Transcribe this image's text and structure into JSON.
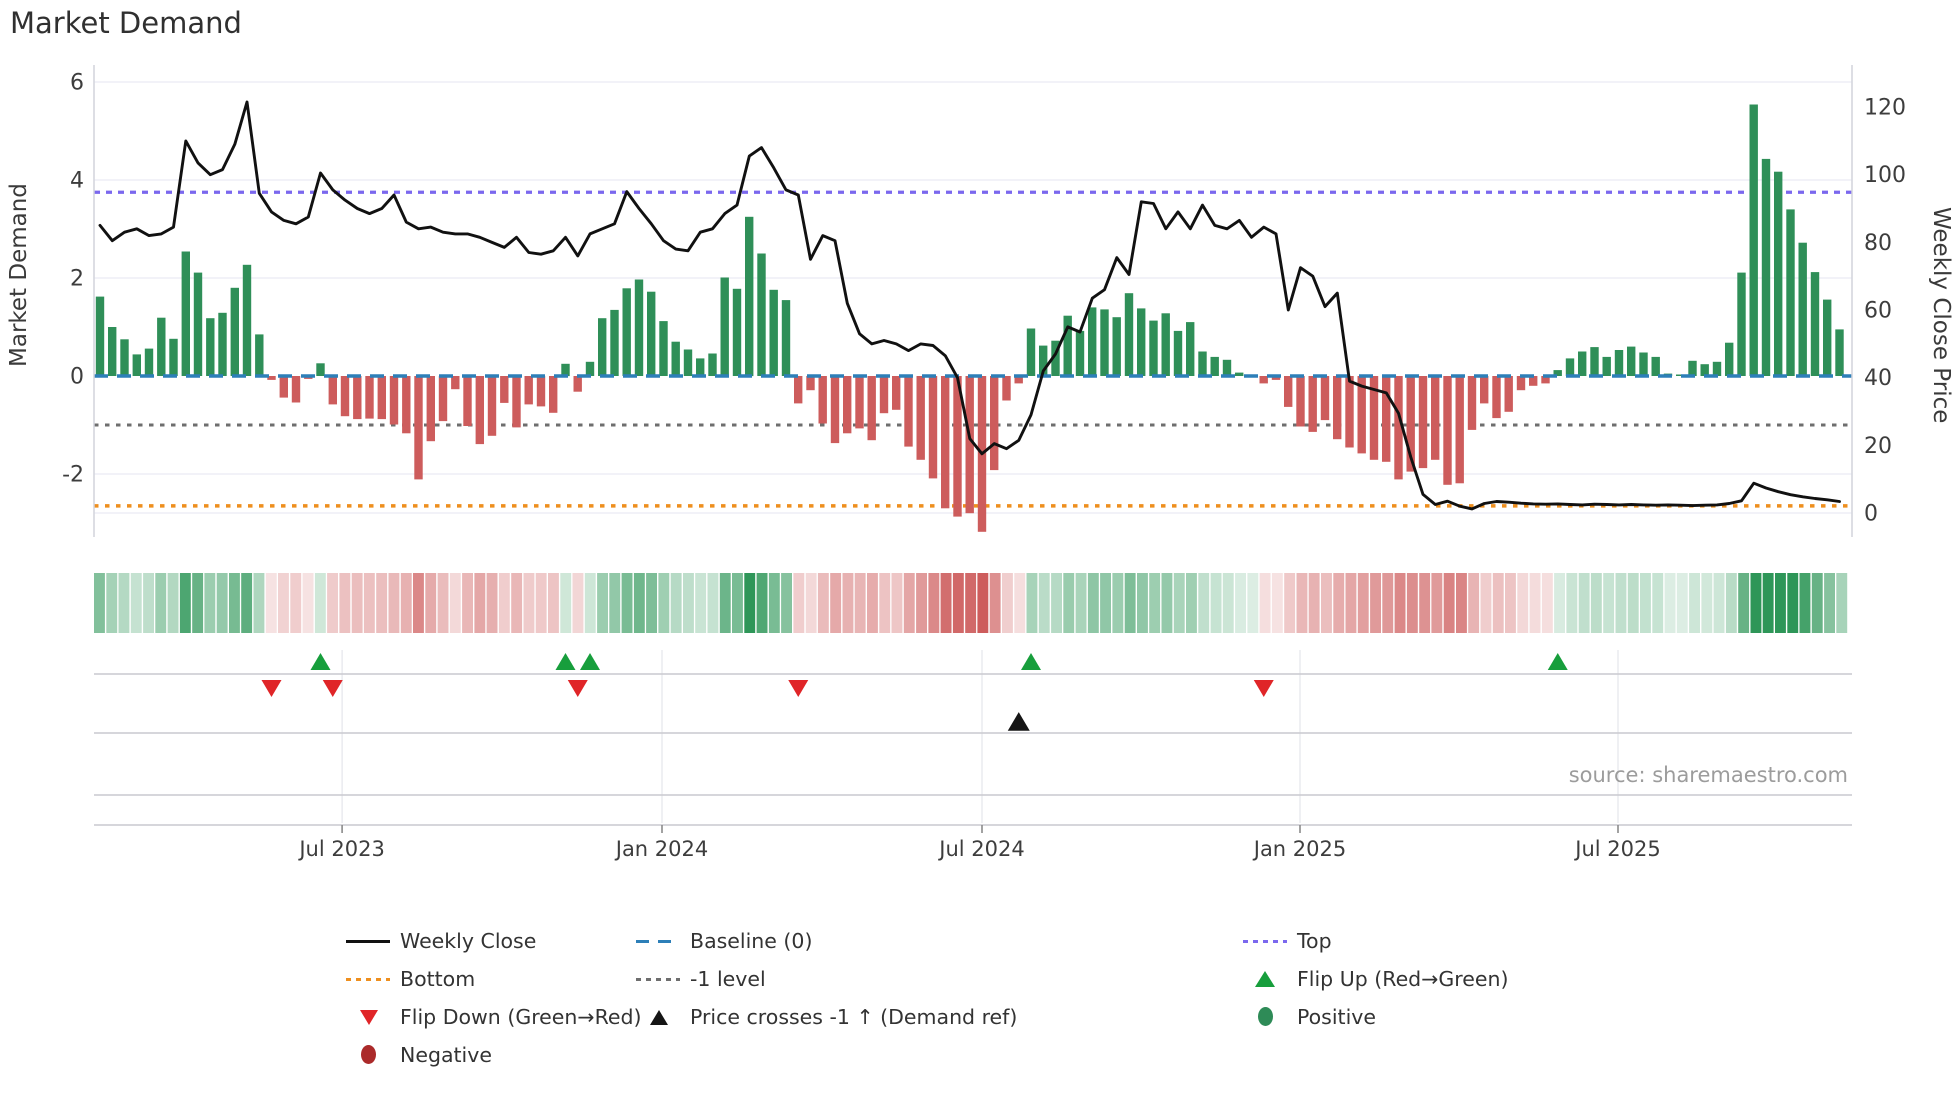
{
  "title": "Market Demand",
  "source": "source: sharemaestro.com",
  "axes": {
    "left_label": "Market Demand",
    "right_label": "Weekly Close Price"
  },
  "legend": {
    "items": [
      {
        "label": "Weekly Close",
        "swatch": "line-black"
      },
      {
        "label": "Baseline (0)",
        "swatch": "dash-blue"
      },
      {
        "label": "Top",
        "swatch": "dot-purple"
      },
      {
        "label": "Bottom",
        "swatch": "dot-orange"
      },
      {
        "label": "-1 level",
        "swatch": "dot-gray"
      },
      {
        "label": "Flip Up (Red→Green)",
        "swatch": "tri-up-green"
      },
      {
        "label": "Flip Down (Green→Red)",
        "swatch": "tri-down-red"
      },
      {
        "label": "Price crosses -1 ↑ (Demand ref)",
        "swatch": "tri-up-black"
      },
      {
        "label": "Positive",
        "swatch": "dot-green"
      },
      {
        "label": "Negative",
        "swatch": "dot-darkred"
      }
    ]
  },
  "colors": {
    "bar_positive": "#2f8f58",
    "bar_negative": "#cd5c5c",
    "price_line": "#111111",
    "baseline": "#2d7fb8",
    "top_line": "#7b68ee",
    "minus_one_line": "#6e6e6e",
    "bottom_line": "#ee8f1e",
    "flip_up": "#179e3c",
    "flip_down": "#e02528",
    "price_cross": "#151515",
    "grid": "#edeef5",
    "spine": "#d2d4dc",
    "tick_text": "#3d3d3d"
  },
  "chart_data": {
    "type": "bar",
    "title": "Market Demand",
    "xlabel": "",
    "ylabel_left": "Market Demand",
    "ylabel_right": "Weekly Close Price",
    "ylim_left": [
      -3.3,
      6.4
    ],
    "ylim_right": [
      0,
      133
    ],
    "grid": true,
    "legend_position": "bottom",
    "left_ticks": [
      6,
      4,
      2,
      0,
      -2
    ],
    "right_ticks": [
      0,
      20,
      40,
      60,
      80,
      100,
      120
    ],
    "x_ticks": [
      {
        "label": "Jul 2023",
        "week": 19.76
      },
      {
        "label": "Jan 2024",
        "week": 45.88
      },
      {
        "label": "Jul 2024",
        "week": 72.0
      },
      {
        "label": "Jan 2025",
        "week": 97.96
      },
      {
        "label": "Jul 2025",
        "week": 123.92
      }
    ],
    "reference_lines": {
      "baseline": 0,
      "top": 3.75,
      "minus_one": -1,
      "bottom": -2.65
    },
    "series": [
      {
        "name": "Market Demand",
        "type": "bar",
        "axis": "left",
        "values": [
          1.62,
          1.0,
          0.75,
          0.44,
          0.56,
          1.19,
          0.76,
          2.54,
          2.11,
          1.18,
          1.29,
          1.8,
          2.27,
          0.85,
          -0.08,
          -0.44,
          -0.54,
          -0.06,
          0.26,
          -0.58,
          -0.82,
          -0.88,
          -0.87,
          -0.88,
          -0.99,
          -1.17,
          -2.11,
          -1.33,
          -0.92,
          -0.27,
          -1.02,
          -1.39,
          -1.22,
          -0.55,
          -1.05,
          -0.58,
          -0.62,
          -0.75,
          0.25,
          -0.32,
          0.29,
          1.18,
          1.35,
          1.79,
          1.97,
          1.72,
          1.12,
          0.7,
          0.54,
          0.36,
          0.46,
          2.01,
          1.78,
          3.25,
          2.5,
          1.76,
          1.55,
          -0.56,
          -0.29,
          -0.97,
          -1.37,
          -1.17,
          -1.07,
          -1.31,
          -0.76,
          -0.69,
          -1.44,
          -1.71,
          -2.09,
          -2.7,
          -2.87,
          -2.8,
          -3.18,
          -1.92,
          -0.5,
          -0.15,
          0.97,
          0.62,
          0.72,
          1.23,
          0.92,
          1.4,
          1.36,
          1.2,
          1.69,
          1.38,
          1.13,
          1.28,
          0.92,
          1.1,
          0.5,
          0.39,
          0.33,
          0.07,
          0.02,
          -0.15,
          -0.08,
          -0.63,
          -1.03,
          -1.14,
          -0.9,
          -1.29,
          -1.46,
          -1.58,
          -1.71,
          -1.75,
          -2.11,
          -1.95,
          -1.88,
          -1.71,
          -2.22,
          -2.19,
          -1.1,
          -0.56,
          -0.86,
          -0.73,
          -0.29,
          -0.2,
          -0.15,
          0.12,
          0.36,
          0.5,
          0.59,
          0.39,
          0.53,
          0.6,
          0.48,
          0.39,
          0.05,
          0.03,
          0.31,
          0.24,
          0.29,
          0.68,
          2.11,
          5.54,
          4.43,
          4.17,
          3.4,
          2.72,
          2.12,
          1.56,
          0.95
        ]
      },
      {
        "name": "Weekly Close",
        "type": "line",
        "axis": "right",
        "values": [
          85,
          80.5,
          83,
          84,
          82,
          82.5,
          84.5,
          110,
          103.5,
          100,
          101.5,
          109,
          121.5,
          94.5,
          89,
          86.5,
          85.5,
          87.5,
          100.5,
          95.5,
          92.5,
          90,
          88.5,
          90,
          94,
          86,
          84,
          84.5,
          83,
          82.5,
          82.5,
          81.5,
          80,
          78.5,
          81.5,
          77,
          76.5,
          77.5,
          81.5,
          76,
          82.5,
          84,
          85.5,
          95,
          90,
          85.5,
          80.5,
          78,
          77.5,
          83,
          84,
          88.5,
          91,
          105.5,
          108,
          102,
          95.5,
          94,
          75,
          82,
          80.5,
          62,
          53,
          50,
          51,
          50,
          48,
          50,
          49.5,
          46.5,
          40,
          22,
          17.5,
          20.5,
          19,
          21.5,
          29,
          42,
          47,
          55,
          53.5,
          63.5,
          66,
          75.5,
          70.5,
          92,
          91.5,
          84,
          89,
          84,
          91,
          85,
          84,
          86.5,
          81.5,
          84.5,
          82.5,
          60,
          72.5,
          70,
          61,
          65,
          39,
          37.5,
          36.5,
          35.5,
          29.5,
          16.5,
          5.5,
          2.5,
          3.5,
          2,
          1.2,
          2.8,
          3.4,
          3.2,
          2.9,
          2.7,
          2.6,
          2.7,
          2.5,
          2.4,
          2.6,
          2.5,
          2.4,
          2.5,
          2.4,
          2.3,
          2.4,
          2.3,
          2.2,
          2.3,
          2.4,
          2.8,
          3.6,
          8.8,
          7.4,
          6.3,
          5.4,
          4.8,
          4.3,
          3.9,
          3.4
        ]
      }
    ],
    "markers": {
      "flip_up_weeks": [
        18,
        38,
        40,
        76,
        119
      ],
      "flip_down_weeks": [
        14,
        19,
        39,
        57,
        95
      ],
      "price_cross_weeks": [
        75
      ]
    },
    "heatmap": "derived from bar values: green shades positive, red shades negative"
  }
}
